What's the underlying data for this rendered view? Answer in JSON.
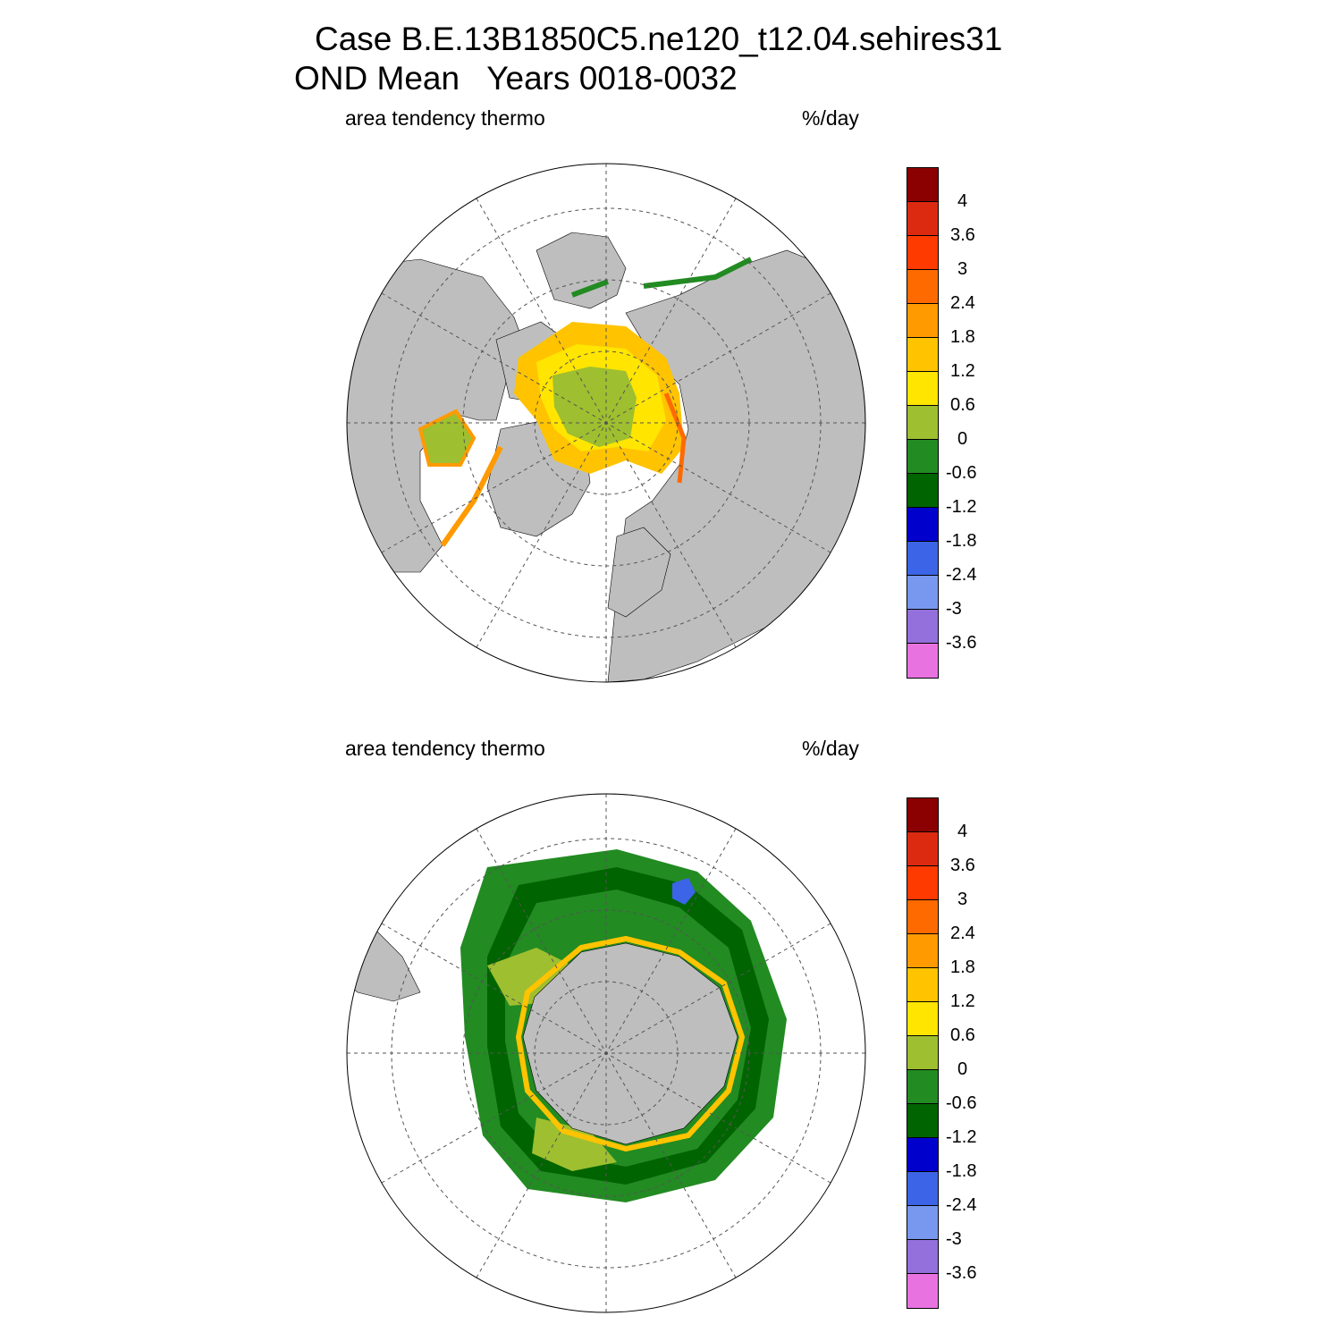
{
  "title": {
    "line1": "Case B.E.13B1850C5.ne120_t12.04.sehires31",
    "line2": "OND Mean   Years 0018-0032"
  },
  "panels": [
    {
      "id": "arctic",
      "hemisphere": "north",
      "left_label": "area tendency thermo",
      "right_label": "%/day"
    },
    {
      "id": "antarctic",
      "hemisphere": "south",
      "left_label": "area tendency thermo",
      "right_label": "%/day"
    }
  ],
  "colorbar": {
    "levels": [
      "4",
      "3.6",
      "3",
      "2.4",
      "1.8",
      "1.2",
      "0.6",
      "0",
      "-0.6",
      "-1.2",
      "-1.8",
      "-2.4",
      "-3",
      "-3.6"
    ],
    "colors": [
      "#8b0000",
      "#dc2a10",
      "#ff3a00",
      "#ff6a00",
      "#ff9a00",
      "#ffc300",
      "#ffe500",
      "#9ebf2f",
      "#228b22",
      "#006400",
      "#0000cd",
      "#3c64e6",
      "#7898f0",
      "#9370db",
      "#e873e0"
    ]
  },
  "map_colors": {
    "land": "#bebebe",
    "ocean": "#ffffff",
    "grid": "#555555"
  }
}
